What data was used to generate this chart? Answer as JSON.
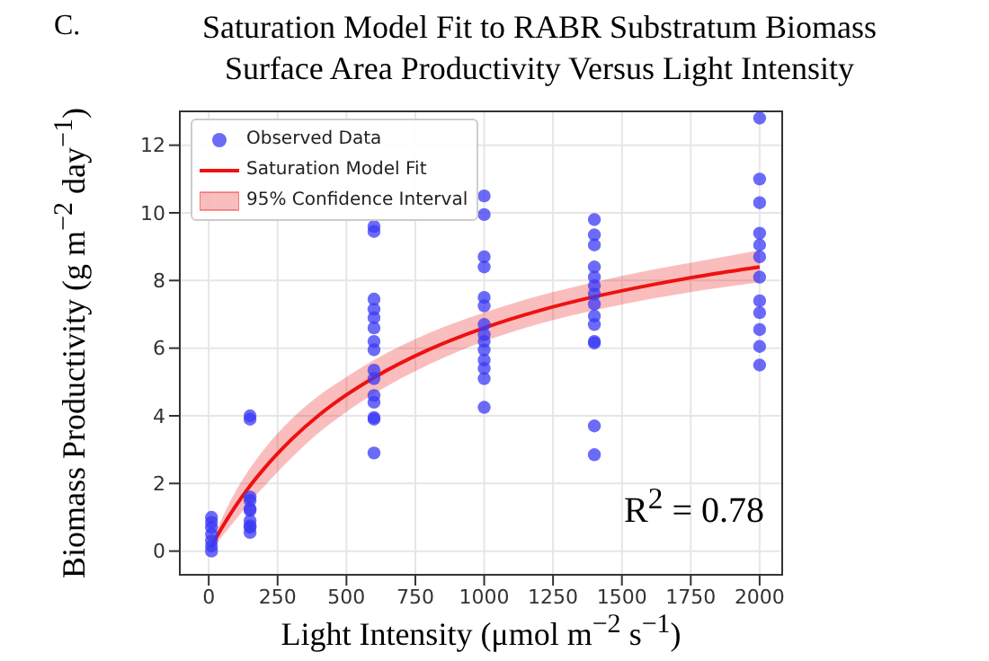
{
  "chart_data": {
    "type": "scatter",
    "title": "Saturation Model Fit to RABR Substratum Biomass Surface Area Productivity Versus Light Intensity",
    "xlabel": "Light Intensity (μmol m$^{−2}$ s$^{−1}$)",
    "ylabel": "Biomass Productivity (g m$^{−2}$ day$^{−1}$)",
    "annotations": [
      "C.",
      "R$^{2}$ = 0.78",
      "95% Confidence Interval"
    ],
    "xlim": [
      -105,
      2082
    ],
    "ylim": [
      -0.7,
      13
    ],
    "xticks": [
      0,
      250,
      500,
      750,
      1000,
      1250,
      1500,
      1750,
      2000
    ],
    "yticks": [
      0,
      2,
      4,
      6,
      8,
      10,
      12
    ],
    "grid": true,
    "legend": "top left",
    "series": [
      {
        "name": "Observed Data",
        "marker": "circle",
        "color": "#3a3af5",
        "x": [
          10,
          10,
          10,
          10,
          10,
          10,
          10,
          150,
          150,
          150,
          150,
          150,
          150,
          150,
          150,
          150,
          150,
          600,
          600,
          600,
          600,
          600,
          600,
          600,
          600,
          600,
          600,
          600,
          600,
          600,
          600,
          600,
          1000,
          1000,
          1000,
          1000,
          1000,
          1000,
          1000,
          1000,
          1000,
          1000,
          1000,
          1000,
          1000,
          1000,
          1400,
          1400,
          1400,
          1400,
          1400,
          1400,
          1400,
          1400,
          1400,
          1400,
          1400,
          1400,
          1400,
          1400,
          2000,
          2000,
          2000,
          2000,
          2000,
          2000,
          2000,
          2000,
          2000,
          2000,
          2000,
          2000
        ],
        "values": [
          0,
          0.15,
          0.3,
          0.5,
          0.7,
          0.85,
          1,
          3.9,
          4,
          1.6,
          1.5,
          1.25,
          1.2,
          0.9,
          0.7,
          0.55,
          0.75,
          9.6,
          9.45,
          7.45,
          7.15,
          6.9,
          6.6,
          6.2,
          5.95,
          5.35,
          5.1,
          4.6,
          4.4,
          3.95,
          3.9,
          2.9,
          10.5,
          9.95,
          8.7,
          8.4,
          7.5,
          7.25,
          6.7,
          6.4,
          6.2,
          5.95,
          5.65,
          5.4,
          5.1,
          4.25,
          9.8,
          9.35,
          9.05,
          8.4,
          8.1,
          7.85,
          7.6,
          7.3,
          6.95,
          6.7,
          6.2,
          6.15,
          3.7,
          2.85,
          12.8,
          11,
          10.3,
          9.4,
          9.05,
          8.7,
          8.1,
          7.4,
          7.05,
          6.55,
          6.05,
          5.5
        ]
      },
      {
        "name": "Saturation Model Fit",
        "type": "line",
        "marker": "none",
        "color": "#ee1111",
        "x": [
          10,
          50,
          100,
          150,
          200,
          300,
          400,
          500,
          600,
          800,
          1000,
          1200,
          1400,
          1600,
          1800,
          2000
        ],
        "values": [
          0.15,
          0.72,
          1.36,
          1.93,
          2.43,
          3.3,
          4.02,
          4.62,
          5.13,
          5.96,
          6.6,
          7.11,
          7.52,
          7.86,
          8.15,
          8.4
        ],
        "lower": [
          0.05,
          0.45,
          0.95,
          1.45,
          1.9,
          2.75,
          3.5,
          4.12,
          4.65,
          5.52,
          6.2,
          6.72,
          7.12,
          7.45,
          7.72,
          7.95
        ],
        "upper": [
          0.25,
          1,
          1.8,
          2.45,
          3,
          3.9,
          4.6,
          5.15,
          5.65,
          6.45,
          7.05,
          7.55,
          7.95,
          8.3,
          8.6,
          8.9
        ]
      }
    ]
  }
}
